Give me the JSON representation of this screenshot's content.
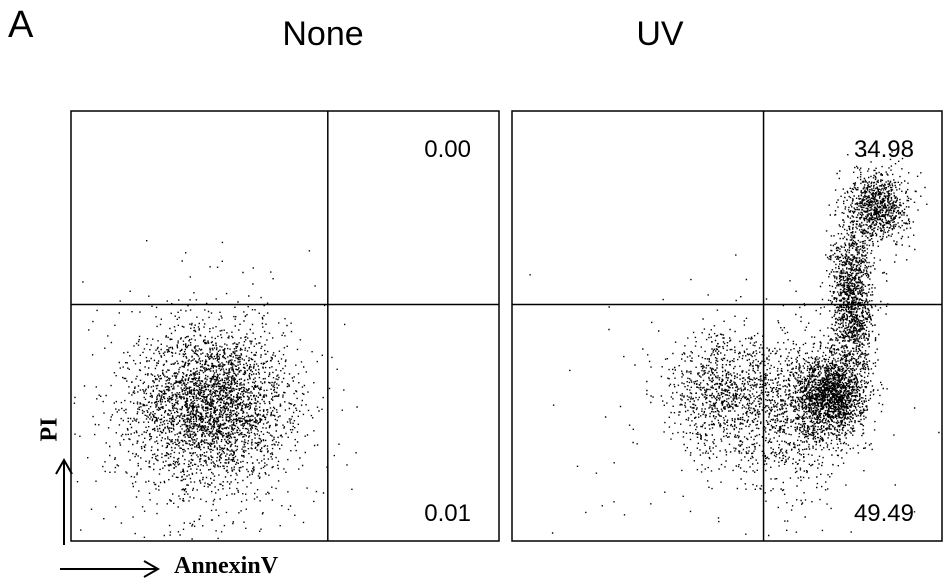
{
  "panel_label": "A",
  "x_axis_label": "AnnexinV",
  "y_axis_label": "PI",
  "chart_data": [
    {
      "type": "scatter",
      "title": "None",
      "xlabel": "AnnexinV",
      "ylabel": "PI",
      "quadrant_divider": {
        "x": 0.6,
        "y": 0.55
      },
      "quadrant_values": [
        {
          "quadrant": "upper-right",
          "label": "0.00"
        },
        {
          "quadrant": "lower-right",
          "label": "0.01"
        }
      ],
      "clusters": [
        {
          "center_x": 0.33,
          "center_y": 0.32,
          "spread_x": 0.085,
          "spread_y": 0.085,
          "count": 2600
        },
        {
          "center_x": 0.3,
          "center_y": 0.28,
          "spread_x": 0.14,
          "spread_y": 0.14,
          "count": 900
        }
      ]
    },
    {
      "type": "scatter",
      "title": "UV",
      "xlabel": "AnnexinV",
      "ylabel": "PI",
      "quadrant_divider": {
        "x": 0.585,
        "y": 0.55
      },
      "quadrant_values": [
        {
          "quadrant": "upper-right",
          "label": "34.98"
        },
        {
          "quadrant": "lower-right",
          "label": "49.49"
        }
      ],
      "clusters": [
        {
          "center_x": 0.74,
          "center_y": 0.34,
          "spread_x": 0.04,
          "spread_y": 0.045,
          "count": 1700
        },
        {
          "center_x": 0.79,
          "center_y": 0.56,
          "spread_x": 0.025,
          "spread_y": 0.09,
          "count": 1400
        },
        {
          "center_x": 0.85,
          "center_y": 0.78,
          "spread_x": 0.035,
          "spread_y": 0.04,
          "count": 900
        },
        {
          "center_x": 0.49,
          "center_y": 0.34,
          "spread_x": 0.065,
          "spread_y": 0.07,
          "count": 900
        },
        {
          "center_x": 0.66,
          "center_y": 0.3,
          "spread_x": 0.07,
          "spread_y": 0.09,
          "count": 900
        },
        {
          "center_x": 0.55,
          "center_y": 0.3,
          "spread_x": 0.18,
          "spread_y": 0.16,
          "count": 180
        }
      ]
    }
  ]
}
